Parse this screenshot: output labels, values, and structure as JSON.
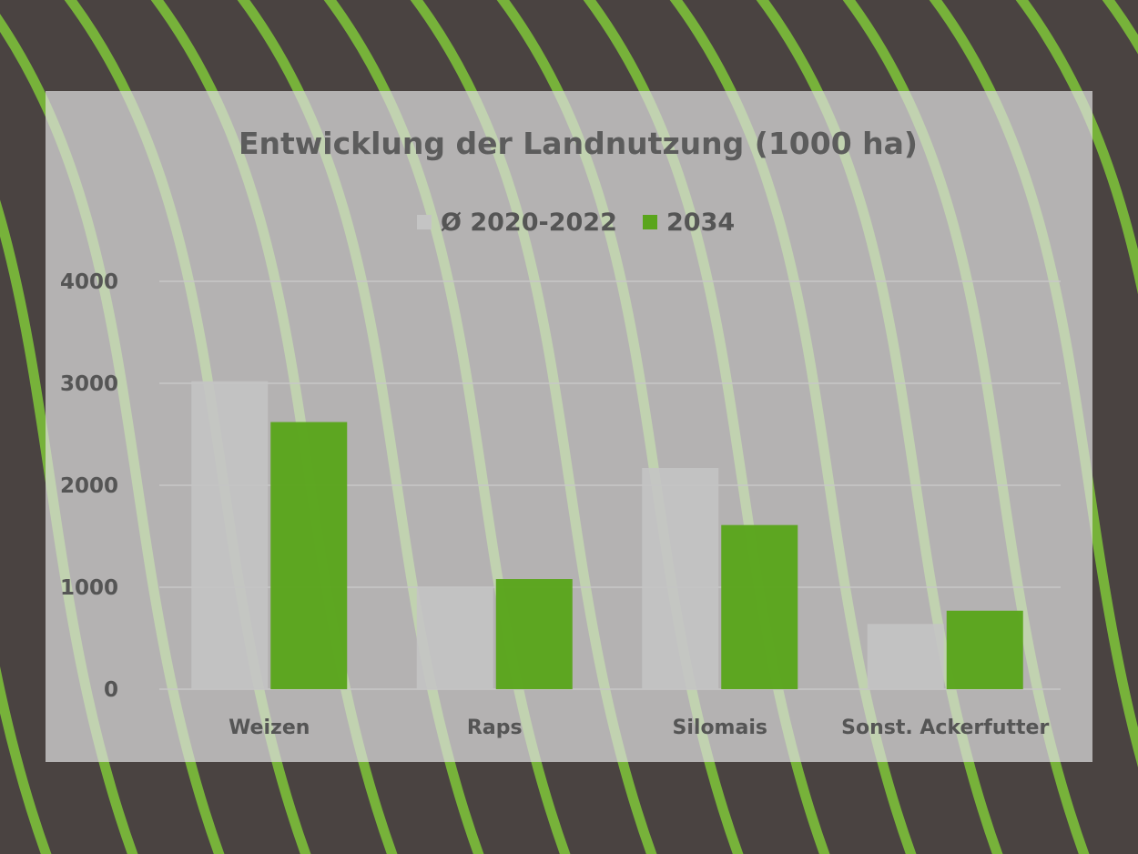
{
  "colors": {
    "soil": "#4a4341",
    "plant": "#7fc63a",
    "panel": "#dedede",
    "series_avg": "#c4c4c4",
    "series_2034": "#5aa51c",
    "text": "#555555"
  },
  "chart_data": {
    "type": "bar",
    "title": "Entwicklung der Landnutzung (1000 ha)",
    "xlabel": "",
    "ylabel": "",
    "ylim": [
      0,
      4000
    ],
    "yticks": [
      0,
      1000,
      2000,
      3000,
      4000
    ],
    "grid": true,
    "legend": "top-center",
    "categories": [
      "Weizen",
      "Raps",
      "Silomais",
      "Sonst. Ackerfutter"
    ],
    "series": [
      {
        "name": "Ø 2020-2022",
        "color": "#c4c4c4",
        "values": [
          3020,
          1000,
          2170,
          640
        ]
      },
      {
        "name": "2034",
        "color": "#5aa51c",
        "values": [
          2620,
          1080,
          1610,
          770
        ]
      }
    ]
  }
}
